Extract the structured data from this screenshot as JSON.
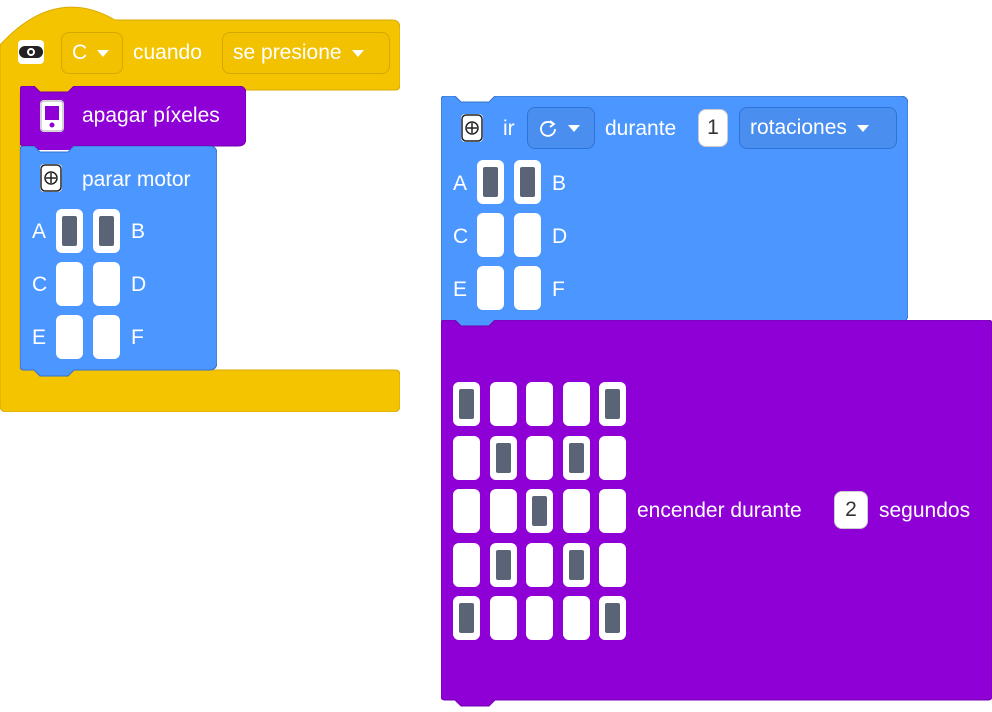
{
  "colors": {
    "event_yellow": "#f5c400",
    "motor_blue": "#4c97ff",
    "light_purple": "#8f00d6",
    "port_on": "#5b6477"
  },
  "event_block": {
    "button_value": "C",
    "label": "cuando",
    "action_value": "se presione"
  },
  "clear_block": {
    "label": "apagar píxeles"
  },
  "stop_block": {
    "label": "parar motor",
    "ports": [
      {
        "left": "A",
        "right": "B",
        "left_on": true,
        "right_on": true
      },
      {
        "left": "C",
        "right": "D",
        "left_on": false,
        "right_on": false
      },
      {
        "left": "E",
        "right": "F",
        "left_on": false,
        "right_on": false
      }
    ]
  },
  "run_block": {
    "label_go": "ir",
    "direction_icon": "clockwise-icon",
    "label_for": "durante",
    "amount": "1",
    "unit": "rotaciones",
    "ports": [
      {
        "left": "A",
        "right": "B",
        "left_on": true,
        "right_on": true
      },
      {
        "left": "C",
        "right": "D",
        "left_on": false,
        "right_on": false
      },
      {
        "left": "E",
        "right": "F",
        "left_on": false,
        "right_on": false
      }
    ]
  },
  "light_block": {
    "grid": [
      [
        1,
        0,
        0,
        0,
        1
      ],
      [
        0,
        1,
        0,
        1,
        0
      ],
      [
        0,
        0,
        1,
        0,
        0
      ],
      [
        0,
        1,
        0,
        1,
        0
      ],
      [
        1,
        0,
        0,
        0,
        1
      ]
    ],
    "label_on": "encender durante",
    "seconds": "2",
    "label_unit": "segundos"
  }
}
